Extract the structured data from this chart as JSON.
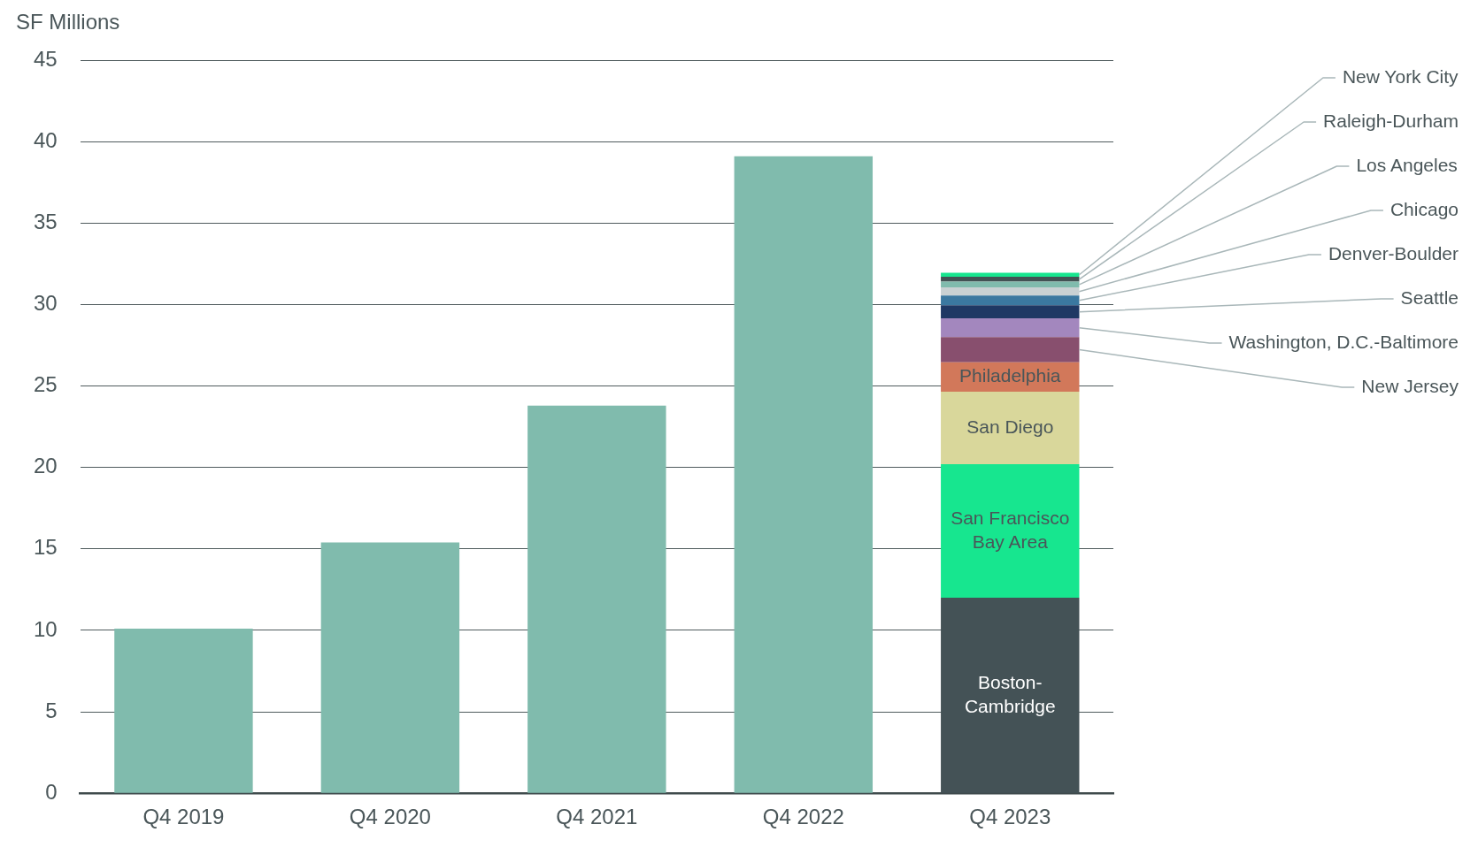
{
  "chart_data": {
    "type": "bar",
    "ylabel": "SF Millions",
    "categories": [
      "Q4 2019",
      "Q4 2020",
      "Q4 2021",
      "Q4 2022",
      "Q4 2023"
    ],
    "stacked": true,
    "ylim": [
      0,
      45
    ],
    "yticks": [
      0,
      5,
      10,
      15,
      20,
      25,
      30,
      35,
      40,
      45
    ],
    "grid": "y",
    "series": [
      {
        "color": "#80bbad",
        "values": [
          10.1,
          15.4,
          23.8,
          39.1,
          null
        ]
      },
      {
        "name": "Boston-Cambridge",
        "color": "#445256",
        "values": [
          null,
          null,
          null,
          null,
          12.0
        ]
      },
      {
        "name": "San Francisco Bay Area",
        "color": "#17e68f",
        "values": [
          null,
          null,
          null,
          null,
          8.2
        ]
      },
      {
        "name": "San Diego",
        "color": "#d9d79b",
        "values": [
          null,
          null,
          null,
          null,
          4.45
        ]
      },
      {
        "name": "Philadelphia",
        "color": "#d2785a",
        "values": [
          null,
          null,
          null,
          null,
          1.8
        ]
      },
      {
        "name": "New Jersey",
        "color": "#884f6e",
        "values": [
          null,
          null,
          null,
          null,
          1.55
        ]
      },
      {
        "name": "Washington, D.C.-Baltimore",
        "color": "#a387be",
        "values": [
          null,
          null,
          null,
          null,
          1.15
        ]
      },
      {
        "name": "Seattle",
        "color": "#1f3864",
        "values": [
          null,
          null,
          null,
          null,
          0.8
        ]
      },
      {
        "name": "Denver-Boulder",
        "color": "#3b78a0",
        "values": [
          null,
          null,
          null,
          null,
          0.6
        ]
      },
      {
        "name": "Chicago",
        "color": "#c9d1d3",
        "values": [
          null,
          null,
          null,
          null,
          0.5
        ]
      },
      {
        "name": "Los Angeles",
        "color": "#80bbad",
        "values": [
          null,
          null,
          null,
          null,
          0.35
        ]
      },
      {
        "name": "Raleigh-Durham",
        "color": "#435254",
        "values": [
          null,
          null,
          null,
          null,
          0.3
        ]
      },
      {
        "name": "New York City",
        "color": "#17e68f",
        "values": [
          null,
          null,
          null,
          null,
          0.25
        ]
      }
    ]
  }
}
